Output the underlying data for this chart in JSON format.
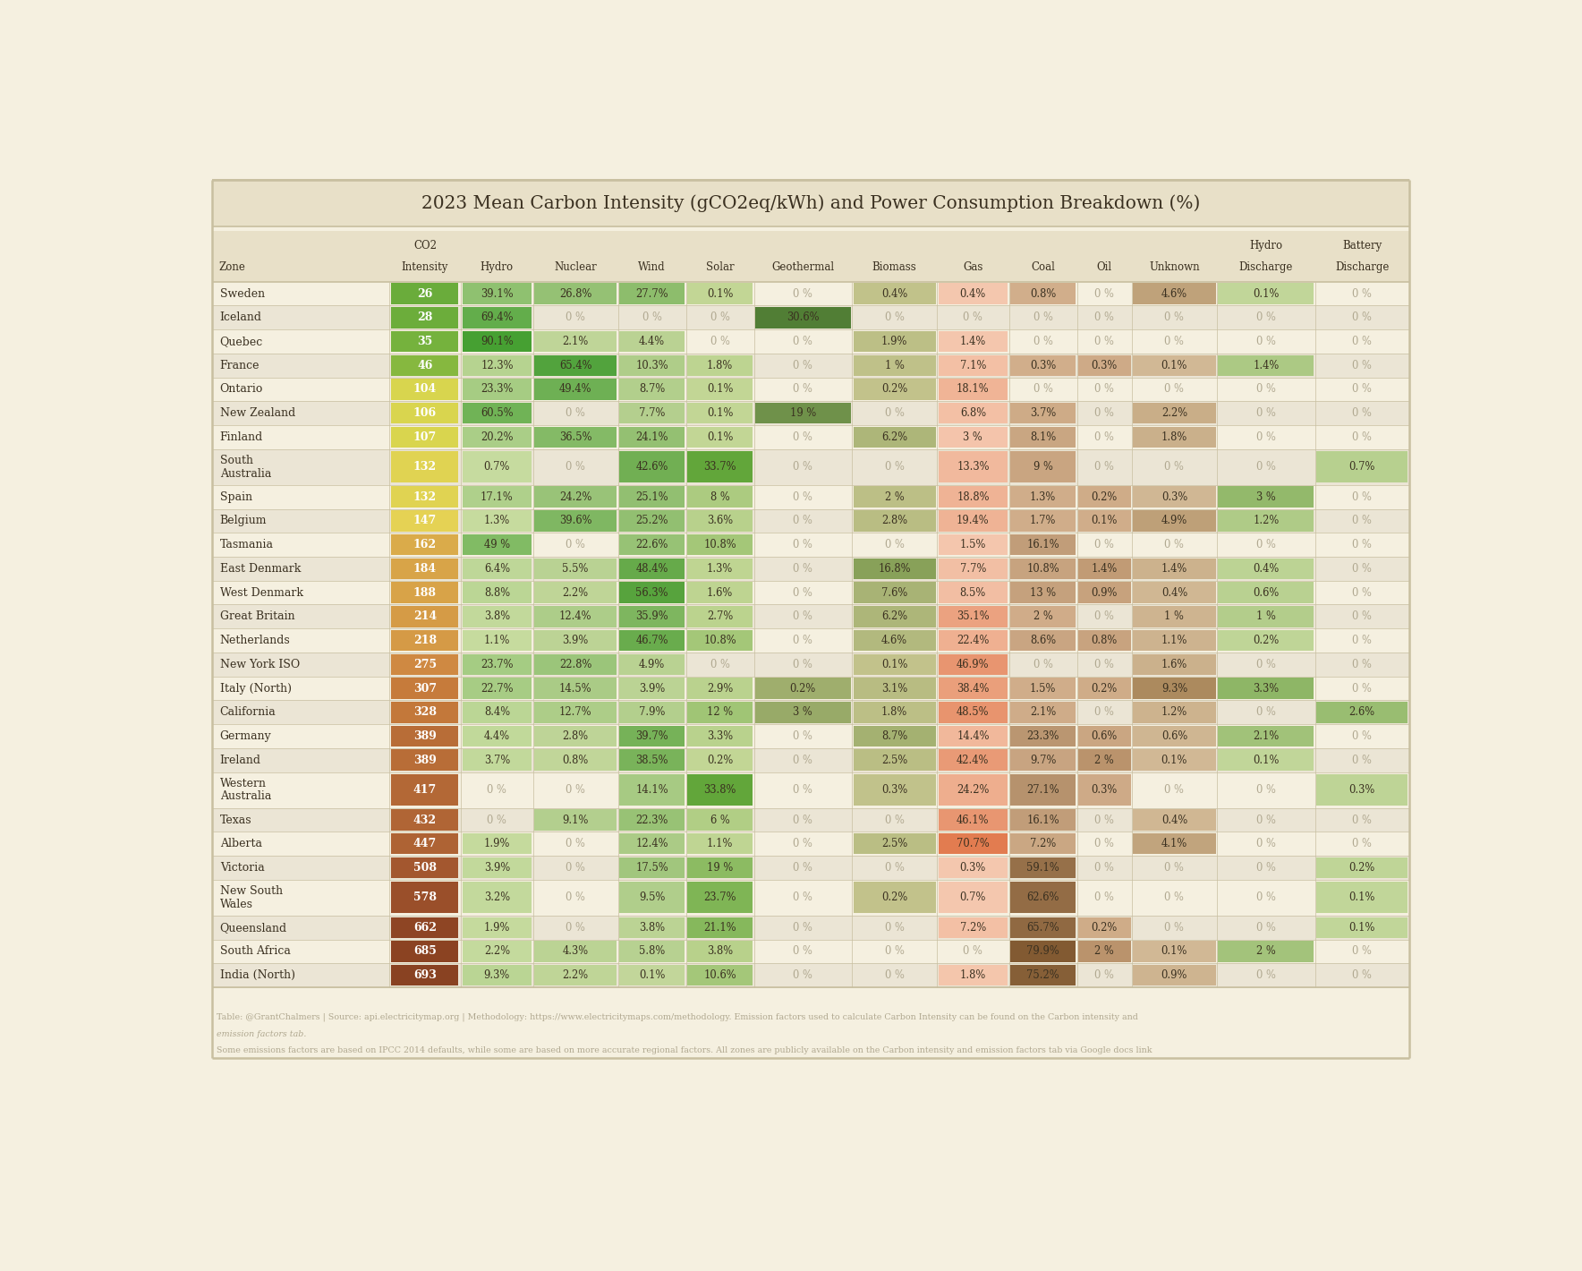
{
  "title": "2023 Mean Carbon Intensity (gCO2eq/kWh) and Power Consumption Breakdown (%)",
  "background_color": "#f5f0e0",
  "header_bg": "#e8e0c8",
  "table_bg_light": "#f5f0e0",
  "table_bg_dark": "#ebe5d5",
  "border_color": "#c8bfa0",
  "text_color": "#3a3020",
  "dim_text_color": "#b0a890",
  "col_headers_line1": [
    "",
    "CO2",
    "",
    "",
    "",
    "",
    "",
    "",
    "",
    "",
    "",
    "",
    "Hydro",
    "Battery"
  ],
  "col_headers_line2": [
    "Zone",
    "Intensity",
    "Hydro",
    "Nuclear",
    "Wind",
    "Solar",
    "Geothermal",
    "Biomass",
    "Gas",
    "Coal",
    "Oil",
    "Unknown",
    "Discharge",
    "Discharge"
  ],
  "rows": [
    [
      "Sweden",
      26,
      "39.1%",
      "26.8%",
      "27.7%",
      "0.1%",
      "0 %",
      "0.4%",
      "0.4%",
      "0.8%",
      "0 %",
      "4.6%",
      "0.1%",
      "0 %"
    ],
    [
      "Iceland",
      28,
      "69.4%",
      "0 %",
      "0 %",
      "0 %",
      "30.6%",
      "0 %",
      "0 %",
      "0 %",
      "0 %",
      "0 %",
      "0 %",
      "0 %"
    ],
    [
      "Quebec",
      35,
      "90.1%",
      "2.1%",
      "4.4%",
      "0 %",
      "0 %",
      "1.9%",
      "1.4%",
      "0 %",
      "0 %",
      "0 %",
      "0 %",
      "0 %"
    ],
    [
      "France",
      46,
      "12.3%",
      "65.4%",
      "10.3%",
      "1.8%",
      "0 %",
      "1 %",
      "7.1%",
      "0.3%",
      "0.3%",
      "0.1%",
      "1.4%",
      "0 %"
    ],
    [
      "Ontario",
      104,
      "23.3%",
      "49.4%",
      "8.7%",
      "0.1%",
      "0 %",
      "0.2%",
      "18.1%",
      "0 %",
      "0 %",
      "0 %",
      "0 %",
      "0 %"
    ],
    [
      "New Zealand",
      106,
      "60.5%",
      "0 %",
      "7.7%",
      "0.1%",
      "19 %",
      "0 %",
      "6.8%",
      "3.7%",
      "0 %",
      "2.2%",
      "0 %",
      "0 %"
    ],
    [
      "Finland",
      107,
      "20.2%",
      "36.5%",
      "24.1%",
      "0.1%",
      "0 %",
      "6.2%",
      "3 %",
      "8.1%",
      "0 %",
      "1.8%",
      "0 %",
      "0 %"
    ],
    [
      "South\nAustralia",
      132,
      "0.7%",
      "0 %",
      "42.6%",
      "33.7%",
      "0 %",
      "0 %",
      "13.3%",
      "9 %",
      "0 %",
      "0 %",
      "0 %",
      "0.7%"
    ],
    [
      "Spain",
      132,
      "17.1%",
      "24.2%",
      "25.1%",
      "8 %",
      "0 %",
      "2 %",
      "18.8%",
      "1.3%",
      "0.2%",
      "0.3%",
      "3 %",
      "0 %"
    ],
    [
      "Belgium",
      147,
      "1.3%",
      "39.6%",
      "25.2%",
      "3.6%",
      "0 %",
      "2.8%",
      "19.4%",
      "1.7%",
      "0.1%",
      "4.9%",
      "1.2%",
      "0 %"
    ],
    [
      "Tasmania",
      162,
      "49 %",
      "0 %",
      "22.6%",
      "10.8%",
      "0 %",
      "0 %",
      "1.5%",
      "16.1%",
      "0 %",
      "0 %",
      "0 %",
      "0 %"
    ],
    [
      "East Denmark",
      184,
      "6.4%",
      "5.5%",
      "48.4%",
      "1.3%",
      "0 %",
      "16.8%",
      "7.7%",
      "10.8%",
      "1.4%",
      "1.4%",
      "0.4%",
      "0 %"
    ],
    [
      "West Denmark",
      188,
      "8.8%",
      "2.2%",
      "56.3%",
      "1.6%",
      "0 %",
      "7.6%",
      "8.5%",
      "13 %",
      "0.9%",
      "0.4%",
      "0.6%",
      "0 %"
    ],
    [
      "Great Britain",
      214,
      "3.8%",
      "12.4%",
      "35.9%",
      "2.7%",
      "0 %",
      "6.2%",
      "35.1%",
      "2 %",
      "0 %",
      "1 %",
      "1 %",
      "0 %"
    ],
    [
      "Netherlands",
      218,
      "1.1%",
      "3.9%",
      "46.7%",
      "10.8%",
      "0 %",
      "4.6%",
      "22.4%",
      "8.6%",
      "0.8%",
      "1.1%",
      "0.2%",
      "0 %"
    ],
    [
      "New York ISO",
      275,
      "23.7%",
      "22.8%",
      "4.9%",
      "0 %",
      "0 %",
      "0.1%",
      "46.9%",
      "0 %",
      "0 %",
      "1.6%",
      "0 %",
      "0 %"
    ],
    [
      "Italy (North)",
      307,
      "22.7%",
      "14.5%",
      "3.9%",
      "2.9%",
      "0.2%",
      "3.1%",
      "38.4%",
      "1.5%",
      "0.2%",
      "9.3%",
      "3.3%",
      "0 %"
    ],
    [
      "California",
      328,
      "8.4%",
      "12.7%",
      "7.9%",
      "12 %",
      "3 %",
      "1.8%",
      "48.5%",
      "2.1%",
      "0 %",
      "1.2%",
      "0 %",
      "2.6%"
    ],
    [
      "Germany",
      389,
      "4.4%",
      "2.8%",
      "39.7%",
      "3.3%",
      "0 %",
      "8.7%",
      "14.4%",
      "23.3%",
      "0.6%",
      "0.6%",
      "2.1%",
      "0 %"
    ],
    [
      "Ireland",
      389,
      "3.7%",
      "0.8%",
      "38.5%",
      "0.2%",
      "0 %",
      "2.5%",
      "42.4%",
      "9.7%",
      "2 %",
      "0.1%",
      "0.1%",
      "0 %"
    ],
    [
      "Western\nAustralia",
      417,
      "0 %",
      "0 %",
      "14.1%",
      "33.8%",
      "0 %",
      "0.3%",
      "24.2%",
      "27.1%",
      "0.3%",
      "0 %",
      "0 %",
      "0.3%"
    ],
    [
      "Texas",
      432,
      "0 %",
      "9.1%",
      "22.3%",
      "6 %",
      "0 %",
      "0 %",
      "46.1%",
      "16.1%",
      "0 %",
      "0.4%",
      "0 %",
      "0 %"
    ],
    [
      "Alberta",
      447,
      "1.9%",
      "0 %",
      "12.4%",
      "1.1%",
      "0 %",
      "2.5%",
      "70.7%",
      "7.2%",
      "0 %",
      "4.1%",
      "0 %",
      "0 %"
    ],
    [
      "Victoria",
      508,
      "3.9%",
      "0 %",
      "17.5%",
      "19 %",
      "0 %",
      "0 %",
      "0.3%",
      "59.1%",
      "0 %",
      "0 %",
      "0 %",
      "0.2%"
    ],
    [
      "New South\nWales",
      578,
      "3.2%",
      "0 %",
      "9.5%",
      "23.7%",
      "0 %",
      "0.2%",
      "0.7%",
      "62.6%",
      "0 %",
      "0 %",
      "0 %",
      "0.1%"
    ],
    [
      "Queensland",
      662,
      "1.9%",
      "0 %",
      "3.8%",
      "21.1%",
      "0 %",
      "0 %",
      "7.2%",
      "65.7%",
      "0.2%",
      "0 %",
      "0 %",
      "0.1%"
    ],
    [
      "South Africa",
      685,
      "2.2%",
      "4.3%",
      "5.8%",
      "3.8%",
      "0 %",
      "0 %",
      "0 %",
      "79.9%",
      "2 %",
      "0.1%",
      "2 %",
      "0 %"
    ],
    [
      "India (North)",
      693,
      "9.3%",
      "2.2%",
      "0.1%",
      "10.6%",
      "0 %",
      "0 %",
      "1.8%",
      "75.2%",
      "0 %",
      "0.9%",
      "0 %",
      "0 %"
    ]
  ],
  "footer_line1": "Table: @GrantChalmers | Source: api.electricitymap.org | Methodology: https://www.electricitymaps.com/methodology. Emission factors used to calculate Carbon Intensity can be found on the Carbon intensity and",
  "footer_line2": "emission factors tab.",
  "footer_line3": "Some emissions factors are based on IPCC 2014 defaults, while some are based on more accurate regional factors. All zones are publicly available on the Carbon intensity and emission factors tab via Google docs link"
}
